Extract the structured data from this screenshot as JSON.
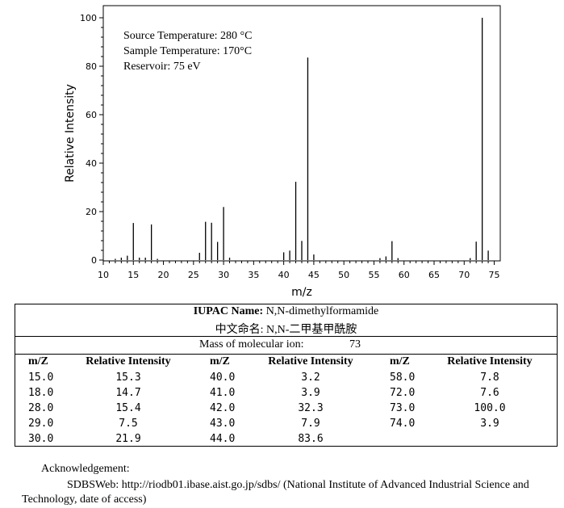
{
  "chart_data": {
    "type": "bar",
    "annotations": [
      "Source Temperature: 280 °C",
      "Sample Temperature: 170°C",
      "Reservoir: 75 eV"
    ],
    "xlabel": "m/z",
    "ylabel": "Relative Intensity",
    "xlim": [
      10,
      76
    ],
    "ylim": [
      0,
      100
    ],
    "x_ticks": [
      "10",
      "15",
      "20",
      "25",
      "30",
      "35",
      "40",
      "45",
      "50",
      "55",
      "60",
      "65",
      "70",
      "75"
    ],
    "y_ticks": [
      "0",
      "20",
      "40",
      "60",
      "80",
      "100"
    ],
    "x": [
      12,
      13,
      14,
      15,
      16,
      17,
      18,
      19,
      26,
      27,
      28,
      29,
      30,
      31,
      40,
      41,
      42,
      43,
      44,
      45,
      56,
      57,
      58,
      59,
      71,
      72,
      73,
      74
    ],
    "values": [
      0.5,
      1.0,
      1.8,
      15.3,
      1.0,
      1.0,
      14.7,
      0.5,
      3.0,
      15.8,
      15.4,
      7.5,
      21.9,
      1.0,
      3.2,
      3.9,
      32.3,
      7.9,
      83.6,
      2.3,
      0.8,
      1.5,
      7.8,
      0.8,
      0.8,
      7.6,
      100.0,
      3.9
    ],
    "grid": false
  },
  "table": {
    "iupac_label": "IUPAC Name:",
    "iupac_value": "N,N-dimethylformamide",
    "chinese_name": "中文命名:  N,N-二甲基甲酰胺",
    "mass_label": "Mass of molecular ion:",
    "mass_value": "73",
    "col_mz": "m/Z",
    "col_ri": "Relative Intensity",
    "rows": [
      {
        "mz": "15.0",
        "ri": "15.3"
      },
      {
        "mz": "18.0",
        "ri": "14.7"
      },
      {
        "mz": "28.0",
        "ri": "15.4"
      },
      {
        "mz": "29.0",
        "ri": "7.5"
      },
      {
        "mz": "30.0",
        "ri": "21.9"
      },
      {
        "mz": "40.0",
        "ri": "3.2"
      },
      {
        "mz": "41.0",
        "ri": "3.9"
      },
      {
        "mz": "42.0",
        "ri": "32.3"
      },
      {
        "mz": "43.0",
        "ri": "7.9"
      },
      {
        "mz": "44.0",
        "ri": "83.6"
      },
      {
        "mz": "58.0",
        "ri": "7.8"
      },
      {
        "mz": "72.0",
        "ri": "7.6"
      },
      {
        "mz": "73.0",
        "ri": "100.0"
      },
      {
        "mz": "74.0",
        "ri": "3.9"
      }
    ]
  },
  "acknowledgement": {
    "title": "Acknowledgement:",
    "line1": "SDBSWeb: http://riodb01.ibase.aist.go.jp/sdbs/ (National Institute of Advanced Industrial Science and",
    "line2": "Technology, date of access)"
  }
}
